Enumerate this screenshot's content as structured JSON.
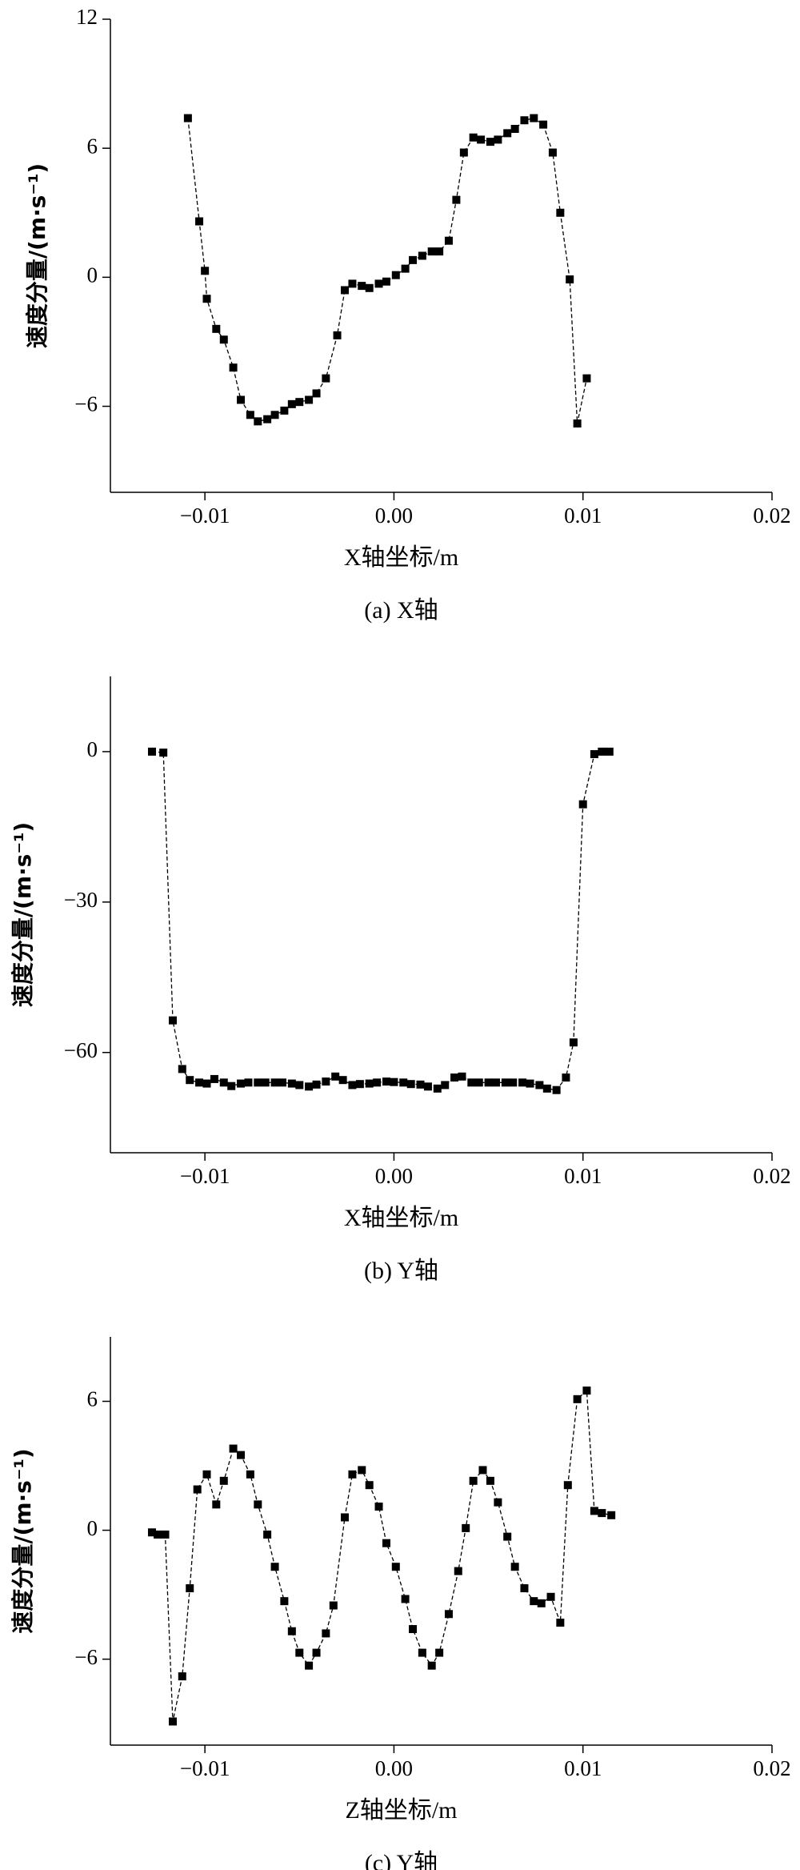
{
  "chart_data": [
    {
      "type": "line",
      "color": "#000000",
      "ylabel": "速度分量/(m·s⁻¹)",
      "xlabel": "X轴坐标/m",
      "caption": "(a) X轴",
      "xlim": [
        -0.015,
        0.02
      ],
      "xticks": [
        {
          "value": -0.01,
          "label": "−0.01"
        },
        {
          "value": 0,
          "label": "0.00"
        },
        0.01,
        0.02
      ],
      "ylim": [
        -10,
        12
      ],
      "yticks": [
        {
          "value": -6,
          "label": "−6"
        },
        0,
        6,
        12
      ],
      "x": [
        -0.0109,
        -0.0103,
        -0.01,
        -0.0099,
        -0.0094,
        -0.009,
        -0.0085,
        -0.0081,
        -0.0076,
        -0.0072,
        -0.0067,
        -0.0063,
        -0.0058,
        -0.0054,
        -0.005,
        -0.0045,
        -0.0041,
        -0.0036,
        -0.003,
        -0.0026,
        -0.0022,
        -0.0017,
        -0.0013,
        -0.0008,
        -0.0004,
        0.0001,
        0.0006,
        0.001,
        0.0015,
        0.002,
        0.0024,
        0.0029,
        0.0033,
        0.0037,
        0.0042,
        0.0046,
        0.0051,
        0.0055,
        0.006,
        0.0064,
        0.0069,
        0.0074,
        0.0079,
        0.0084,
        0.0088,
        0.0093,
        0.0097,
        0.0102
      ],
      "values": [
        7.4,
        2.6,
        0.3,
        -1.0,
        -2.4,
        -2.9,
        -4.2,
        -5.7,
        -6.4,
        -6.7,
        -6.6,
        -6.4,
        -6.2,
        -5.9,
        -5.8,
        -5.7,
        -5.4,
        -4.7,
        -2.7,
        -0.6,
        -0.3,
        -0.4,
        -0.5,
        -0.3,
        -0.2,
        0.1,
        0.4,
        0.8,
        1.0,
        1.2,
        1.2,
        1.7,
        3.6,
        5.8,
        6.5,
        6.4,
        6.3,
        6.4,
        6.7,
        6.9,
        7.3,
        7.4,
        7.1,
        5.8,
        3.0,
        -0.1,
        -6.8,
        -4.7
      ]
    },
    {
      "type": "line",
      "color": "#000000",
      "ylabel": "速度分量/(m·s⁻¹)",
      "xlabel": "X轴坐标/m",
      "caption": "(b) Y轴",
      "xlim": [
        -0.015,
        0.02
      ],
      "xticks": [
        {
          "value": -0.01,
          "label": "−0.01"
        },
        {
          "value": 0,
          "label": "0.00"
        },
        0.01,
        0.02
      ],
      "ylim": [
        -80,
        15
      ],
      "yticks": [
        {
          "value": -60,
          "label": "−60"
        },
        {
          "value": -30,
          "label": "−30"
        },
        0
      ],
      "x": [
        -0.0128,
        -0.0122,
        -0.0117,
        -0.0112,
        -0.0108,
        -0.0103,
        -0.0099,
        -0.0095,
        -0.009,
        -0.0086,
        -0.0081,
        -0.0077,
        -0.0072,
        -0.0068,
        -0.0063,
        -0.0059,
        -0.0054,
        -0.005,
        -0.0045,
        -0.0041,
        -0.0036,
        -0.0031,
        -0.0027,
        -0.0022,
        -0.0018,
        -0.0013,
        -0.0009,
        -0.0004,
        0.0,
        0.0005,
        0.0009,
        0.0014,
        0.0018,
        0.0023,
        0.0027,
        0.0032,
        0.0036,
        0.0041,
        0.0045,
        0.005,
        0.0054,
        0.0059,
        0.0063,
        0.0068,
        0.0072,
        0.0077,
        0.0081,
        0.0086,
        0.0091,
        0.0095,
        0.01,
        0.0106,
        0.011,
        0.0114
      ],
      "values": [
        0,
        -0.2,
        -53.6,
        -63.3,
        -65.5,
        -66,
        -66.2,
        -65.3,
        -66,
        -66.7,
        -66.2,
        -66,
        -66,
        -66,
        -66,
        -66,
        -66.2,
        -66.5,
        -66.8,
        -66.4,
        -65.8,
        -64.8,
        -65.5,
        -66.5,
        -66.3,
        -66.2,
        -66,
        -65.8,
        -65.9,
        -66,
        -66.3,
        -66.4,
        -66.8,
        -67.2,
        -66.5,
        -65,
        -64.8,
        -66,
        -66,
        -66,
        -66,
        -66,
        -66,
        -66,
        -66.2,
        -66.5,
        -67.2,
        -67.5,
        -65,
        -58,
        -10.5,
        -0.5,
        0,
        0
      ]
    },
    {
      "type": "line",
      "color": "#000000",
      "ylabel": "速度分量/(m·s⁻¹)",
      "xlabel": "Z轴坐标/m",
      "caption": "(c) Y轴",
      "xlim": [
        -0.015,
        0.02
      ],
      "xticks": [
        {
          "value": -0.01,
          "label": "−0.01"
        },
        {
          "value": 0,
          "label": "0.00"
        },
        0.01,
        0.02
      ],
      "ylim": [
        -10,
        9
      ],
      "yticks": [
        {
          "value": -6,
          "label": "−6"
        },
        0,
        6
      ],
      "x": [
        -0.0128,
        -0.0125,
        -0.0121,
        -0.0117,
        -0.0112,
        -0.0108,
        -0.0104,
        -0.0099,
        -0.0094,
        -0.009,
        -0.0085,
        -0.0081,
        -0.0076,
        -0.0072,
        -0.0067,
        -0.0063,
        -0.0058,
        -0.0054,
        -0.005,
        -0.0045,
        -0.0041,
        -0.0036,
        -0.0032,
        -0.0026,
        -0.0022,
        -0.0017,
        -0.0013,
        -0.0008,
        -0.0004,
        0.0001,
        0.0006,
        0.001,
        0.0015,
        0.002,
        0.0024,
        0.0029,
        0.0034,
        0.0038,
        0.0042,
        0.0047,
        0.0051,
        0.0055,
        0.006,
        0.0064,
        0.0069,
        0.0074,
        0.0078,
        0.0083,
        0.0088,
        0.0092,
        0.0097,
        0.0102,
        0.0106,
        0.011,
        0.0115
      ],
      "values": [
        -0.1,
        -0.2,
        -0.2,
        -8.9,
        -6.8,
        -2.7,
        1.9,
        2.6,
        1.2,
        2.3,
        3.8,
        3.5,
        2.6,
        1.2,
        -0.2,
        -1.7,
        -3.3,
        -4.7,
        -5.7,
        -6.3,
        -5.7,
        -4.8,
        -3.5,
        0.6,
        2.6,
        2.8,
        2.1,
        1.1,
        -0.6,
        -1.7,
        -3.2,
        -4.6,
        -5.7,
        -6.3,
        -5.7,
        -3.9,
        -1.9,
        0.1,
        2.3,
        2.8,
        2.3,
        1.3,
        -0.3,
        -1.7,
        -2.7,
        -3.3,
        -3.4,
        -3.1,
        -4.3,
        2.1,
        6.1,
        6.5,
        0.9,
        0.8,
        0.7
      ]
    }
  ]
}
